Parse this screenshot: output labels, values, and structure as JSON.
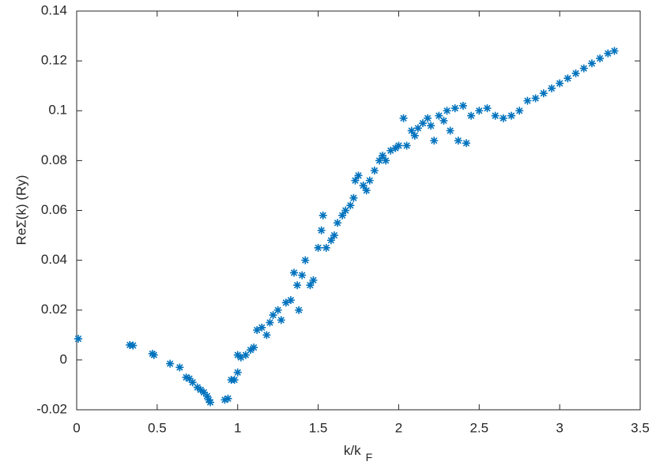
{
  "chart_data": {
    "type": "scatter",
    "x_label": "k/k",
    "x_label_subscript": "F",
    "y_label": "ReΣ(k) (Ry)",
    "color": "#0072bd",
    "marker": "asterisk",
    "xlim": [
      0,
      3.5
    ],
    "xticks": [
      0,
      0.5,
      1,
      1.5,
      2,
      2.5,
      3,
      3.5
    ],
    "ylim": [
      -0.02,
      0.14
    ],
    "yticks": [
      -0.02,
      0,
      0.02,
      0.04,
      0.06,
      0.08,
      0.1,
      0.12,
      0.14
    ],
    "x": [
      0.01,
      0.33,
      0.35,
      0.47,
      0.48,
      0.58,
      0.64,
      0.68,
      0.7,
      0.72,
      0.75,
      0.77,
      0.79,
      0.81,
      0.82,
      0.83,
      0.92,
      0.94,
      0.96,
      0.98,
      1.0,
      1.0,
      1.02,
      1.05,
      1.08,
      1.1,
      1.12,
      1.15,
      1.18,
      1.2,
      1.22,
      1.25,
      1.27,
      1.3,
      1.33,
      1.35,
      1.37,
      1.38,
      1.4,
      1.42,
      1.45,
      1.47,
      1.5,
      1.52,
      1.53,
      1.55,
      1.58,
      1.6,
      1.62,
      1.65,
      1.67,
      1.7,
      1.72,
      1.73,
      1.75,
      1.78,
      1.8,
      1.82,
      1.85,
      1.88,
      1.9,
      1.92,
      1.95,
      1.98,
      2.0,
      2.03,
      2.05,
      2.08,
      2.1,
      2.12,
      2.15,
      2.18,
      2.2,
      2.22,
      2.25,
      2.28,
      2.3,
      2.32,
      2.35,
      2.37,
      2.4,
      2.42,
      2.45,
      2.5,
      2.55,
      2.6,
      2.65,
      2.7,
      2.75,
      2.8,
      2.85,
      2.9,
      2.95,
      3.0,
      3.05,
      3.1,
      3.15,
      3.2,
      3.25,
      3.3,
      3.34
    ],
    "values": [
      0.0085,
      0.006,
      0.0058,
      0.0025,
      0.002,
      -0.0015,
      -0.003,
      -0.007,
      -0.0075,
      -0.009,
      -0.011,
      -0.012,
      -0.013,
      -0.0145,
      -0.016,
      -0.017,
      -0.016,
      -0.0155,
      -0.008,
      -0.008,
      -0.005,
      0.002,
      0.001,
      0.002,
      0.004,
      0.005,
      0.012,
      0.013,
      0.01,
      0.015,
      0.018,
      0.02,
      0.016,
      0.023,
      0.024,
      0.035,
      0.03,
      0.02,
      0.034,
      0.04,
      0.03,
      0.032,
      0.045,
      0.052,
      0.058,
      0.045,
      0.048,
      0.05,
      0.055,
      0.058,
      0.06,
      0.062,
      0.065,
      0.072,
      0.074,
      0.07,
      0.068,
      0.072,
      0.076,
      0.08,
      0.082,
      0.08,
      0.084,
      0.085,
      0.086,
      0.097,
      0.086,
      0.092,
      0.09,
      0.093,
      0.095,
      0.097,
      0.094,
      0.088,
      0.098,
      0.096,
      0.1,
      0.092,
      0.101,
      0.088,
      0.102,
      0.087,
      0.098,
      0.1,
      0.101,
      0.098,
      0.097,
      0.098,
      0.1,
      0.104,
      0.105,
      0.107,
      0.109,
      0.111,
      0.113,
      0.115,
      0.117,
      0.119,
      0.121,
      0.123,
      0.124
    ]
  }
}
